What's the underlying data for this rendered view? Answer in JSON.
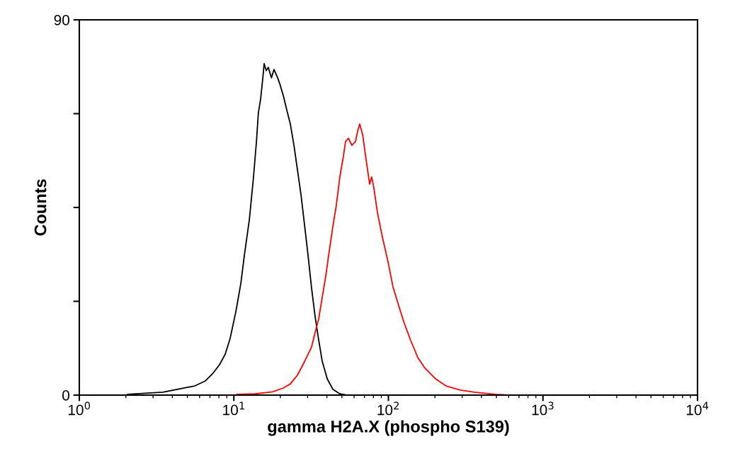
{
  "chart_data": {
    "type": "line",
    "xlabel": "gamma H2A.X (phospho S139)",
    "ylabel": "Counts",
    "log": "x",
    "xlim": [
      1,
      10000
    ],
    "xticks": [
      {
        "value": 1,
        "label": "10$^{0}$"
      },
      {
        "value": 10,
        "label": "10$^{1}$"
      },
      {
        "value": 100,
        "label": "10$^{2}$"
      },
      {
        "value": 1000,
        "label": "10$^{3}$"
      },
      {
        "value": 10000,
        "label": "10$^{4}$"
      }
    ],
    "ylim": [
      0,
      90
    ],
    "yticks": [
      0,
      {
        "value": 22.5,
        "label": null
      },
      {
        "value": 45,
        "label": null
      },
      {
        "value": 67.5,
        "label": null
      },
      90
    ],
    "grid": false,
    "legend": false,
    "series": [
      {
        "color": "#000000",
        "x": [
          2.05,
          3.47,
          4.77,
          5.58,
          6.54,
          7.27,
          8.08,
          8.79,
          9.46,
          10.3,
          11.1,
          11.7,
          12.6,
          13.4,
          14.0,
          14.4,
          14.9,
          15.4,
          15.7,
          16.2,
          16.7,
          17.5,
          18.2,
          19.2,
          19.8,
          20.9,
          22.0,
          23.2,
          24.5,
          25.8,
          27.2,
          28.6,
          30.2,
          31.8,
          33.5,
          35.4,
          37.3,
          40.2,
          43.7,
          48.5,
          53.9
        ],
        "values": [
          0.2,
          0.7,
          1.7,
          2.2,
          3.4,
          5.1,
          7.3,
          9.8,
          13.6,
          20.0,
          26.8,
          33.6,
          42.1,
          52.3,
          60.8,
          67.6,
          71.0,
          76.1,
          79.5,
          77.8,
          78.6,
          76.1,
          78.1,
          76.1,
          74.7,
          71.8,
          68.4,
          65.0,
          59.8,
          54.0,
          48.0,
          41.1,
          33.5,
          25.8,
          19.0,
          13.2,
          8.1,
          3.9,
          1.4,
          0.3,
          0
        ]
      },
      {
        "color": "#ff0000",
        "x": [
          10.5,
          13.7,
          17.8,
          20.9,
          23.2,
          25.8,
          28.0,
          30.2,
          31.8,
          33.5,
          35.4,
          37.3,
          39.3,
          41.4,
          43.7,
          46.0,
          48.5,
          51.2,
          52.8,
          55.1,
          58.1,
          61.2,
          63.2,
          65.2,
          68.1,
          71.7,
          75.6,
          78.0,
          80.5,
          84.9,
          91.4,
          99.5,
          107,
          116,
          126,
          139,
          155,
          172,
          202,
          236,
          292,
          360,
          494,
          611
        ],
        "values": [
          0.2,
          0.3,
          0.8,
          1.7,
          2.7,
          4.8,
          7.3,
          9.8,
          11.5,
          14.9,
          18.3,
          23.4,
          28.5,
          34.5,
          40.4,
          45.5,
          52.3,
          57.4,
          60.8,
          61.6,
          59.9,
          60.8,
          63.3,
          65.0,
          62.5,
          56.5,
          50.6,
          52.3,
          49.7,
          43.8,
          37.9,
          31.9,
          26.0,
          21.7,
          17.5,
          13.2,
          9.0,
          6.5,
          3.9,
          2.2,
          1.2,
          0.7,
          0.2,
          0
        ]
      }
    ]
  }
}
